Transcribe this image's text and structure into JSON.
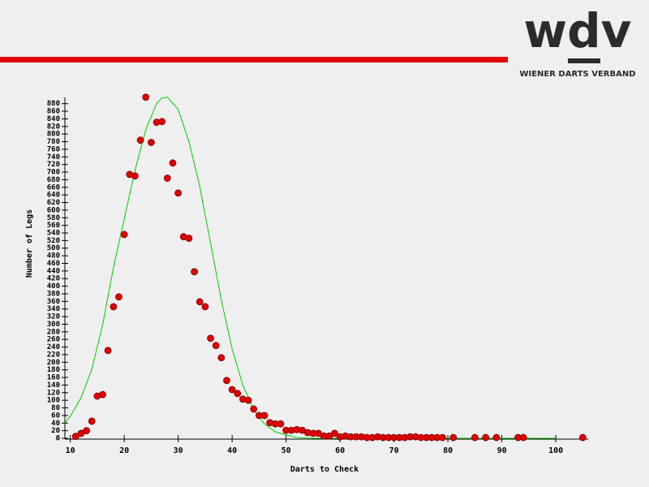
{
  "header": {
    "logo": "wdv",
    "tagline": "WIENER DARTS VERBAND"
  },
  "chart_data": {
    "type": "scatter",
    "x_label": "Darts to Check",
    "y_label": "Number of Legs",
    "xlim": [
      9,
      106
    ],
    "ylim": [
      0,
      905
    ],
    "xticks": [
      10,
      20,
      30,
      40,
      50,
      60,
      70,
      80,
      90,
      100
    ],
    "yticks": [
      0,
      20,
      40,
      60,
      80,
      100,
      120,
      140,
      160,
      180,
      200,
      220,
      240,
      260,
      280,
      300,
      320,
      340,
      360,
      380,
      400,
      420,
      440,
      460,
      480,
      500,
      520,
      540,
      560,
      580,
      600,
      620,
      640,
      660,
      680,
      700,
      720,
      740,
      760,
      780,
      800,
      820,
      840,
      860,
      880
    ],
    "series": [
      {
        "kind": "points",
        "color": "#e00000",
        "x": [
          11,
          12,
          13,
          14,
          15,
          16,
          17,
          18,
          19,
          20,
          21,
          22,
          23,
          24,
          25,
          26,
          27,
          28,
          29,
          30,
          31,
          32,
          33,
          34,
          35,
          36,
          37,
          38,
          39,
          40,
          41,
          42,
          43,
          44,
          45,
          46,
          47,
          48,
          49,
          50,
          51,
          52,
          53,
          54,
          55,
          56,
          57,
          58,
          59,
          60,
          61,
          62,
          63,
          64,
          65,
          66,
          67,
          68,
          69,
          70,
          71,
          72,
          73,
          74,
          75,
          76,
          77,
          78,
          79,
          81,
          85,
          87,
          89,
          93,
          94,
          105
        ],
        "values": [
          5,
          13,
          20,
          45,
          111,
          115,
          231,
          346,
          372,
          536,
          694,
          690,
          784,
          897,
          778,
          831,
          833,
          684,
          724,
          645,
          530,
          526,
          438,
          359,
          346,
          263,
          244,
          212,
          152,
          128,
          118,
          103,
          100,
          77,
          60,
          60,
          41,
          38,
          38,
          21,
          21,
          23,
          21,
          15,
          13,
          13,
          6,
          6,
          13,
          4,
          6,
          4,
          4,
          4,
          2,
          2,
          4,
          2,
          2,
          2,
          2,
          2,
          4,
          4,
          2,
          2,
          2,
          2,
          2,
          2,
          2,
          2,
          2,
          2,
          2,
          2
        ]
      },
      {
        "kind": "line",
        "color": "#00cc00",
        "x": [
          9,
          10,
          12,
          14,
          16,
          18,
          20,
          22,
          24,
          26,
          27,
          28,
          30,
          32,
          34,
          36,
          38,
          40,
          42,
          44,
          46,
          48,
          50,
          52,
          55,
          70,
          85,
          100
        ],
        "values": [
          40,
          58,
          107,
          182,
          299,
          449,
          577,
          705,
          812,
          880,
          895,
          897,
          865,
          780,
          662,
          513,
          363,
          235,
          139,
          75,
          38,
          17,
          9,
          2,
          0,
          0,
          0,
          0
        ]
      }
    ]
  }
}
